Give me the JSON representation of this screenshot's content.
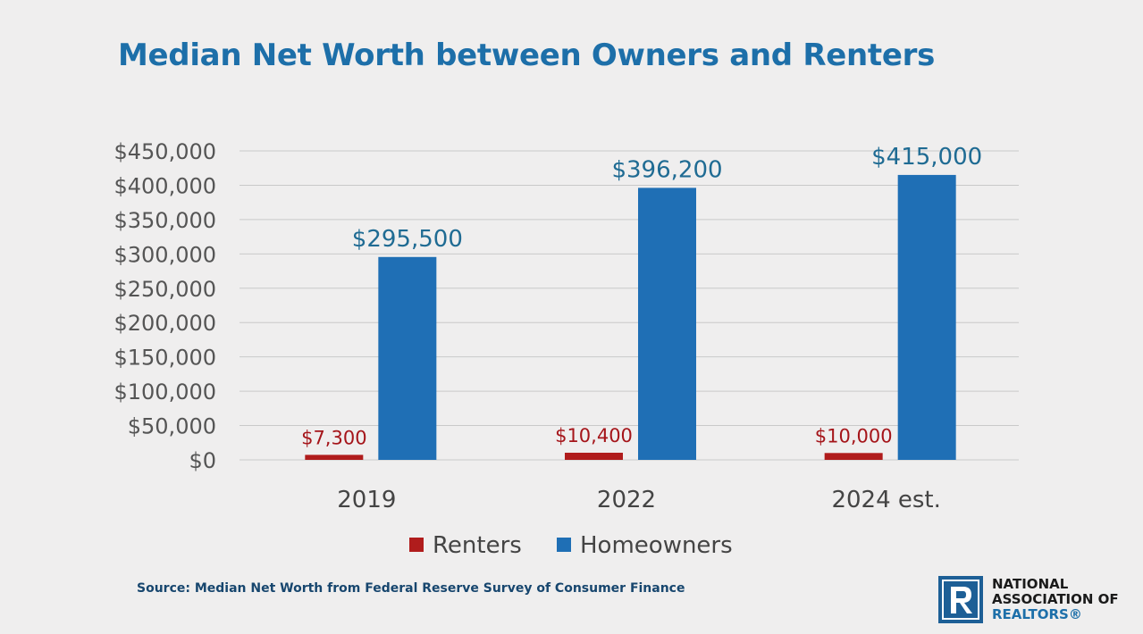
{
  "title": "Median Net Worth between Owners and Renters",
  "source": "Source: Median Net Worth from Federal Reserve Survey of Consumer Finance",
  "logo": {
    "line1": "NATIONAL",
    "line2": "ASSOCIATION OF",
    "line3": "REALTORS®",
    "icon": "realtor-r-logo"
  },
  "colors": {
    "title": "#1d6fa9",
    "renters": "#b01c1c",
    "homeowners": "#1f6fb5",
    "renters_label": "#a5151a",
    "homeowners_label": "#1f6b93"
  },
  "chart_data": {
    "type": "bar",
    "categories": [
      "2019",
      "2022",
      "2024 est."
    ],
    "series": [
      {
        "name": "Renters",
        "values": [
          7300,
          10400,
          10000
        ],
        "labels": [
          "$7,300",
          "$10,400",
          "$10,000"
        ]
      },
      {
        "name": "Homeowners",
        "values": [
          295500,
          396200,
          415000
        ],
        "labels": [
          "$295,500",
          "$396,200",
          "$415,000"
        ]
      }
    ],
    "ylim": [
      0,
      450000
    ],
    "yticks": [
      0,
      50000,
      100000,
      150000,
      200000,
      250000,
      300000,
      350000,
      400000,
      450000
    ],
    "ytick_labels": [
      "$0",
      "$50,000",
      "$100,000",
      "$150,000",
      "$200,000",
      "$250,000",
      "$300,000",
      "$350,000",
      "$400,000",
      "$450,000"
    ],
    "grid": true,
    "legend": "bottom"
  }
}
